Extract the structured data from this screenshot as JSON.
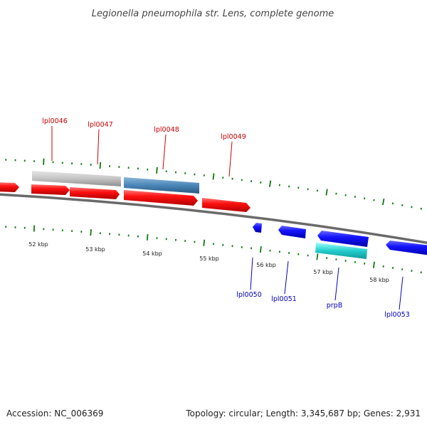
{
  "title": "Legionella pneumophila str. Lens, complete genome",
  "footer": {
    "accession": "Accession: NC_006369",
    "summary": "Topology: circular; Length: 3,345,687 bp; Genes: 2,931"
  },
  "scale": {
    "tick_labels": [
      "52 kbp",
      "53 kbp",
      "54 kbp",
      "55 kbp",
      "56 kbp",
      "57 kbp",
      "58 kbp"
    ]
  },
  "genes": {
    "forward_labels": [
      "lpl0046",
      "lpl0047",
      "lpl0048",
      "lpl0049"
    ],
    "reverse_labels": [
      "lpl0050",
      "lpl0051",
      "prpB",
      "lpl0053"
    ]
  },
  "colors": {
    "forward_gene": "#ee1111",
    "reverse_gene": "#1111ee",
    "pseudo_gene": "#c8c8c8",
    "rna_gene": "#4a86b8",
    "cyan_gene": "#22cccc",
    "backbone": "#888888",
    "tick": "#117711",
    "forward_label": "#cc0000",
    "reverse_label": "#0000bb"
  }
}
